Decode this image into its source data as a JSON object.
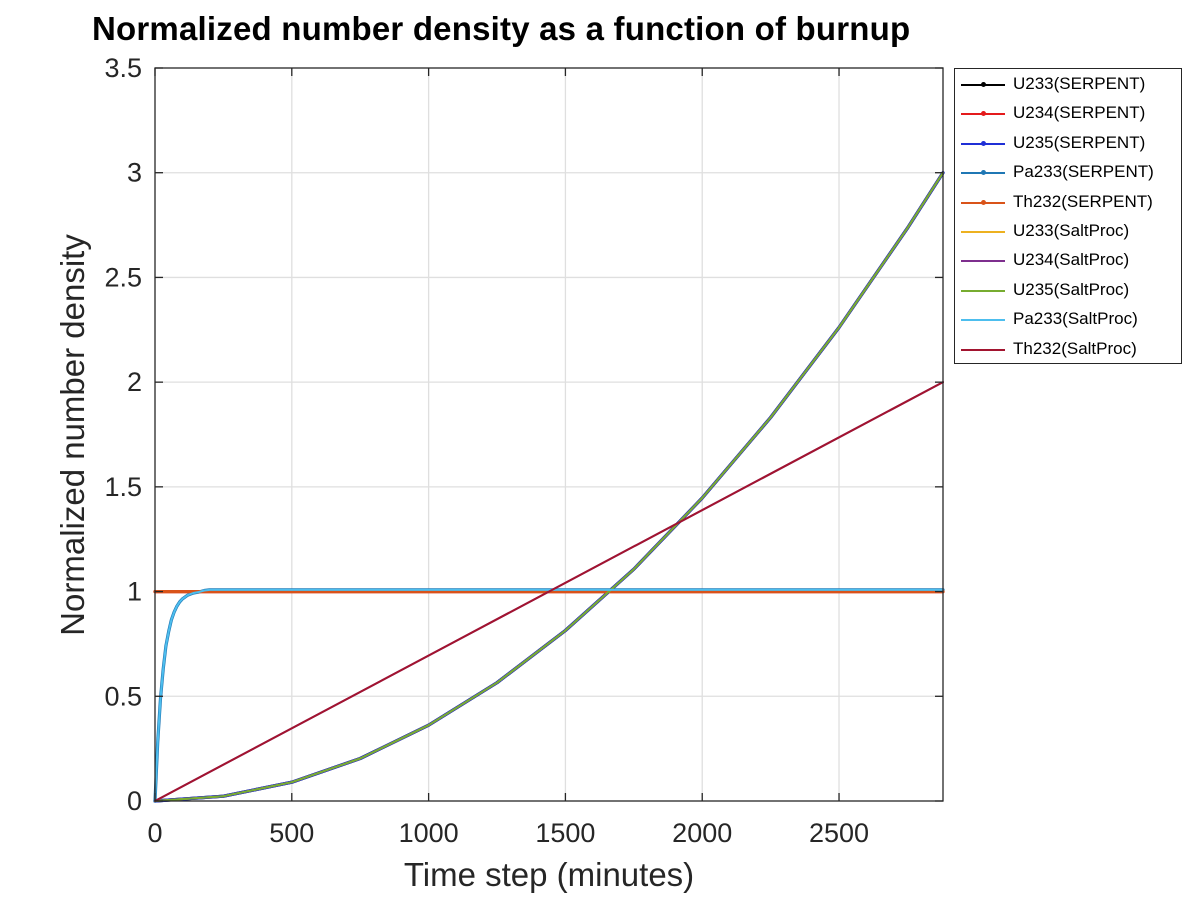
{
  "chart_data": {
    "type": "line",
    "title": "Normalized number density as a function of burnup",
    "xlabel": "Time step (minutes)",
    "ylabel": "Normalized number density",
    "xlim": [
      0,
      2880
    ],
    "ylim": [
      0,
      3.5
    ],
    "xticks": [
      0,
      500,
      1000,
      1500,
      2000,
      2500
    ],
    "yticks": [
      0,
      0.5,
      1,
      1.5,
      2,
      2.5,
      3,
      3.5
    ],
    "xtick_labels": [
      "0",
      "500",
      "1000",
      "1500",
      "2000",
      "2500"
    ],
    "ytick_labels": [
      "0",
      "0.5",
      "1",
      "1.5",
      "2",
      "2.5",
      "3",
      "3.5"
    ],
    "grid": true,
    "legend_position": "outside-right",
    "series": [
      {
        "name": "U233(SERPENT)",
        "color": "#000000",
        "marker": true,
        "x": [
          0,
          250,
          500,
          750,
          1000,
          1250,
          1500,
          1750,
          2000,
          2250,
          2500,
          2750,
          2880
        ],
        "y": [
          0,
          0.023,
          0.09,
          0.203,
          0.362,
          0.565,
          0.814,
          1.107,
          1.447,
          1.831,
          2.261,
          2.735,
          3.0
        ]
      },
      {
        "name": "U234(SERPENT)",
        "color": "#e41a1c",
        "marker": true,
        "x": [
          0,
          2880
        ],
        "y": [
          1.0,
          1.0
        ]
      },
      {
        "name": "U235(SERPENT)",
        "color": "#1f2fd6",
        "marker": true,
        "x": [
          0,
          250,
          500,
          750,
          1000,
          1250,
          1500,
          1750,
          2000,
          2250,
          2500,
          2750,
          2880
        ],
        "y": [
          0,
          0.023,
          0.09,
          0.203,
          0.362,
          0.565,
          0.814,
          1.107,
          1.447,
          1.831,
          2.261,
          2.735,
          3.0
        ]
      },
      {
        "name": "Pa233(SERPENT)",
        "color": "#1f77b4",
        "marker": true,
        "x": [
          0,
          10,
          20,
          30,
          40,
          50,
          60,
          70,
          80,
          90,
          100,
          120,
          140,
          160,
          180,
          200,
          1000,
          2880
        ],
        "y": [
          0,
          0.28,
          0.49,
          0.63,
          0.74,
          0.81,
          0.865,
          0.903,
          0.93,
          0.95,
          0.965,
          0.983,
          0.993,
          0.998,
          1.005,
          1.008,
          1.008,
          1.008
        ]
      },
      {
        "name": "Th232(SERPENT)",
        "color": "#d95319",
        "marker": true,
        "x": [
          0,
          2880
        ],
        "y": [
          1.0,
          1.0
        ]
      },
      {
        "name": "U233(SaltProc)",
        "color": "#edb120",
        "marker": false,
        "x": [
          0,
          250,
          500,
          750,
          1000,
          1250,
          1500,
          1750,
          2000,
          2250,
          2500,
          2750,
          2880
        ],
        "y": [
          0,
          0.023,
          0.09,
          0.203,
          0.362,
          0.565,
          0.814,
          1.107,
          1.447,
          1.831,
          2.261,
          2.735,
          3.0
        ]
      },
      {
        "name": "U234(SaltProc)",
        "color": "#7e2f8e",
        "marker": false,
        "x": [
          0,
          2880
        ],
        "y": [
          0,
          2.0
        ]
      },
      {
        "name": "U235(SaltProc)",
        "color": "#77ac30",
        "marker": false,
        "x": [
          0,
          250,
          500,
          750,
          1000,
          1250,
          1500,
          1750,
          2000,
          2250,
          2500,
          2750,
          2880
        ],
        "y": [
          0,
          0.023,
          0.09,
          0.203,
          0.362,
          0.565,
          0.814,
          1.107,
          1.447,
          1.831,
          2.261,
          2.735,
          3.0
        ]
      },
      {
        "name": "Pa233(SaltProc)",
        "color": "#4dbeee",
        "marker": false,
        "x": [
          0,
          10,
          20,
          30,
          40,
          50,
          60,
          70,
          80,
          90,
          100,
          120,
          140,
          160,
          180,
          200,
          1000,
          2880
        ],
        "y": [
          0,
          0.28,
          0.49,
          0.63,
          0.74,
          0.81,
          0.865,
          0.903,
          0.93,
          0.95,
          0.965,
          0.983,
          0.993,
          0.998,
          1.005,
          1.008,
          1.008,
          1.008
        ]
      },
      {
        "name": "Th232(SaltProc)",
        "color": "#a2142f",
        "marker": false,
        "x": [
          0,
          2880
        ],
        "y": [
          0,
          2.0
        ]
      }
    ]
  }
}
